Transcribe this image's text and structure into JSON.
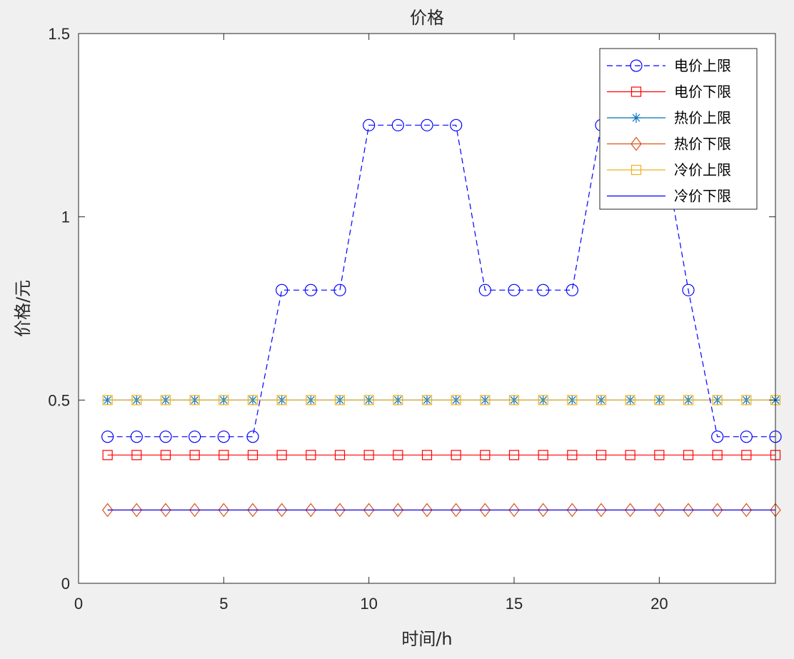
{
  "chart_data": {
    "type": "line",
    "title": "价格",
    "xlabel": "时间/h",
    "ylabel": "价格/元",
    "xlim": [
      0,
      24
    ],
    "ylim": [
      0,
      1.5
    ],
    "xticks": [
      "0",
      "5",
      "10",
      "15",
      "20"
    ],
    "xtick_values": [
      0,
      5,
      10,
      15,
      20
    ],
    "yticks": [
      "0",
      "0.5",
      "1",
      "1.5"
    ],
    "ytick_values": [
      0,
      0.5,
      1,
      1.5
    ],
    "grid": false,
    "legend_position": "top-right",
    "x": [
      1,
      2,
      3,
      4,
      5,
      6,
      7,
      8,
      9,
      10,
      11,
      12,
      13,
      14,
      15,
      16,
      17,
      18,
      19,
      20,
      21,
      22,
      23,
      24
    ],
    "series": [
      {
        "name": "电价上限",
        "color": "#0000ff",
        "line_style": "dashed",
        "marker": "circle",
        "values": [
          0.4,
          0.4,
          0.4,
          0.4,
          0.4,
          0.4,
          0.8,
          0.8,
          0.8,
          1.25,
          1.25,
          1.25,
          1.25,
          0.8,
          0.8,
          0.8,
          0.8,
          1.25,
          1.25,
          1.25,
          0.8,
          0.4,
          0.4,
          0.4
        ]
      },
      {
        "name": "电价下限",
        "color": "#ff0000",
        "line_style": "solid",
        "marker": "square",
        "values": [
          0.35,
          0.35,
          0.35,
          0.35,
          0.35,
          0.35,
          0.35,
          0.35,
          0.35,
          0.35,
          0.35,
          0.35,
          0.35,
          0.35,
          0.35,
          0.35,
          0.35,
          0.35,
          0.35,
          0.35,
          0.35,
          0.35,
          0.35,
          0.35
        ]
      },
      {
        "name": "热价上限",
        "color": "#0072bd",
        "line_style": "solid",
        "marker": "asterisk",
        "values": [
          0.5,
          0.5,
          0.5,
          0.5,
          0.5,
          0.5,
          0.5,
          0.5,
          0.5,
          0.5,
          0.5,
          0.5,
          0.5,
          0.5,
          0.5,
          0.5,
          0.5,
          0.5,
          0.5,
          0.5,
          0.5,
          0.5,
          0.5,
          0.5
        ]
      },
      {
        "name": "热价下限",
        "color": "#d95319",
        "line_style": "solid",
        "marker": "diamond",
        "values": [
          0.2,
          0.2,
          0.2,
          0.2,
          0.2,
          0.2,
          0.2,
          0.2,
          0.2,
          0.2,
          0.2,
          0.2,
          0.2,
          0.2,
          0.2,
          0.2,
          0.2,
          0.2,
          0.2,
          0.2,
          0.2,
          0.2,
          0.2,
          0.2
        ]
      },
      {
        "name": "冷价上限",
        "color": "#edb120",
        "line_style": "solid",
        "marker": "square",
        "values": [
          0.5,
          0.5,
          0.5,
          0.5,
          0.5,
          0.5,
          0.5,
          0.5,
          0.5,
          0.5,
          0.5,
          0.5,
          0.5,
          0.5,
          0.5,
          0.5,
          0.5,
          0.5,
          0.5,
          0.5,
          0.5,
          0.5,
          0.5,
          0.5
        ]
      },
      {
        "name": "冷价下限",
        "color": "#0000ff",
        "line_style": "solid",
        "marker": "none",
        "values": [
          0.2,
          0.2,
          0.2,
          0.2,
          0.2,
          0.2,
          0.2,
          0.2,
          0.2,
          0.2,
          0.2,
          0.2,
          0.2,
          0.2,
          0.2,
          0.2,
          0.2,
          0.2,
          0.2,
          0.2,
          0.2,
          0.2,
          0.2,
          0.2
        ]
      }
    ]
  }
}
